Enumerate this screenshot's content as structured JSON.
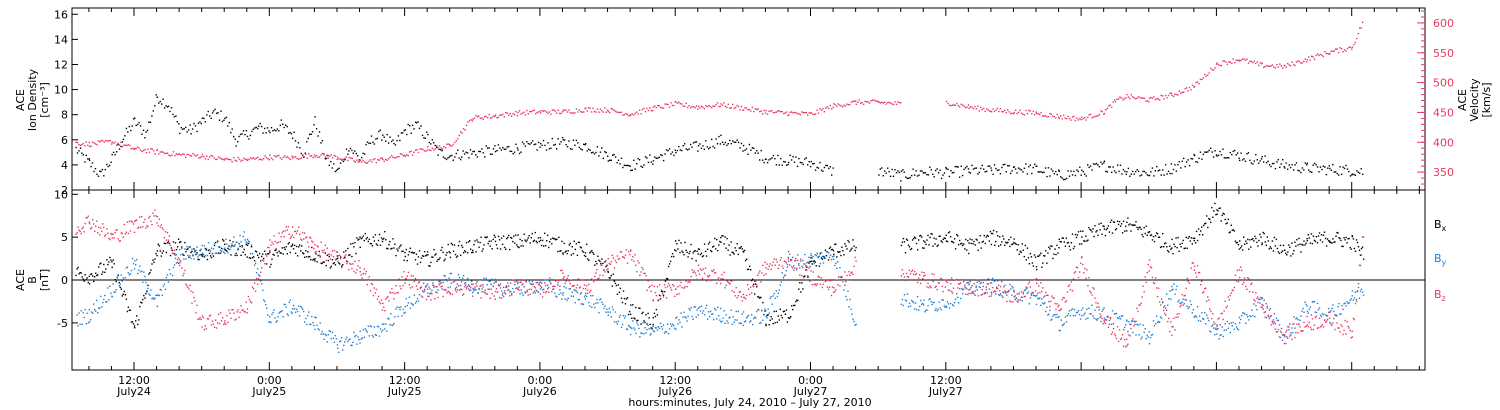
{
  "chart_data": [
    {
      "type": "scatter",
      "panel": "plasma",
      "ylabel_left": [
        "ACE",
        "Ion Density",
        "[cm⁻³]"
      ],
      "ylabel_right": [
        "ACE",
        "Velocity",
        "[km/s]"
      ],
      "ylim_left": [
        2,
        16.5
      ],
      "yticks_left": [
        2,
        4,
        6,
        8,
        10,
        12,
        14,
        16
      ],
      "ylim_right": [
        320,
        625
      ],
      "yticks_right": [
        350,
        400,
        450,
        500,
        550,
        600
      ],
      "x_unit": "hours since 2010-07-24 00:00",
      "series": [
        {
          "axis": "left",
          "color": "#000000",
          "x": [
            6.8,
            8,
            9,
            10,
            11,
            12,
            13,
            14,
            15,
            16,
            17,
            18,
            19,
            20,
            21,
            22,
            23,
            24,
            25,
            26,
            27,
            28,
            29,
            30,
            31,
            32,
            33,
            34,
            35,
            36,
            37,
            38,
            39,
            40,
            41,
            42,
            44,
            46,
            48,
            50,
            52,
            54,
            56,
            58,
            60,
            62,
            64,
            66,
            68,
            70,
            72,
            74,
            76,
            78,
            80,
            82,
            84,
            86,
            88,
            90,
            92,
            94,
            96,
            98,
            100,
            102,
            104,
            106,
            108,
            110,
            112,
            114,
            116,
            118,
            120,
            121
          ],
          "y": [
            5.3,
            4.2,
            3.2,
            4.5,
            6.2,
            7.5,
            6.5,
            9.5,
            8.8,
            7.0,
            6.8,
            7.5,
            8.2,
            7.8,
            6.0,
            6.5,
            7.0,
            6.8,
            7.2,
            6.5,
            5.0,
            7.5,
            4.5,
            3.5,
            5.5,
            4.5,
            6.0,
            6.5,
            5.5,
            6.8,
            7.2,
            6.2,
            5.0,
            4.8,
            4.9,
            5.0,
            5.2,
            5.4,
            5.6,
            5.8,
            5.6,
            4.8,
            4.0,
            4.5,
            5.2,
            5.5,
            6.0,
            5.5,
            4.6,
            4.4,
            4.2,
            3.5,
            null,
            3.6,
            3.2,
            3.5,
            3.4,
            3.6,
            3.6,
            3.8,
            3.7,
            3.2,
            3.5,
            4.0,
            3.6,
            3.4,
            3.8,
            4.6,
            5.2,
            4.8,
            4.4,
            4.0,
            3.8,
            3.7,
            3.6,
            3.5
          ]
        },
        {
          "axis": "right",
          "color": "#e8395f",
          "x": [
            6.8,
            8,
            10,
            12,
            14,
            16,
            18,
            20,
            22,
            24,
            26,
            28,
            30,
            32,
            34,
            36,
            38,
            40,
            42,
            44,
            46,
            48,
            50,
            52,
            54,
            56,
            58,
            60,
            62,
            64,
            66,
            68,
            70,
            72,
            74,
            76,
            78,
            80,
            82,
            84,
            86,
            88,
            90,
            92,
            94,
            96,
            98,
            99,
            100,
            102,
            104,
            106,
            108,
            110,
            112,
            114,
            116,
            118,
            120,
            121
          ],
          "y": [
            400,
            398,
            402,
            390,
            385,
            380,
            378,
            372,
            372,
            376,
            375,
            380,
            376,
            368,
            372,
            380,
            390,
            395,
            442,
            445,
            450,
            452,
            452,
            456,
            455,
            448,
            458,
            465,
            460,
            464,
            458,
            452,
            450,
            448,
            462,
            468,
            468,
            465,
            null,
            468,
            460,
            455,
            452,
            450,
            444,
            440,
            452,
            470,
            478,
            472,
            480,
            495,
            532,
            540,
            530,
            528,
            540,
            552,
            560,
            605
          ]
        }
      ],
      "gaps": [
        [
          75,
          81
        ]
      ]
    },
    {
      "type": "scatter",
      "panel": "magnetic-field",
      "ylabel_left": [
        "ACE",
        "B",
        "[nT]"
      ],
      "ylim": [
        -10.5,
        10.5
      ],
      "yticks": [
        -5,
        0,
        5,
        10
      ],
      "zero_line": true,
      "legend": [
        {
          "label": "B",
          "sub": "x",
          "color": "#000000"
        },
        {
          "label": "B",
          "sub": "y",
          "color": "#1f7fd4"
        },
        {
          "label": "B",
          "sub": "z",
          "color": "#e8395f"
        }
      ],
      "series": [
        {
          "name": "Bx",
          "color": "#000000",
          "x": [
            6.8,
            8,
            10,
            12,
            14,
            16,
            18,
            20,
            22,
            24,
            26,
            28,
            30,
            32,
            34,
            36,
            38,
            40,
            42,
            44,
            46,
            48,
            50,
            52,
            54,
            56,
            58,
            60,
            62,
            64,
            66,
            68,
            70,
            72,
            74,
            76,
            78,
            80,
            82,
            84,
            86,
            88,
            90,
            92,
            94,
            96,
            98,
            100,
            102,
            104,
            106,
            108,
            110,
            112,
            114,
            116,
            118,
            120,
            121
          ],
          "y": [
            1.0,
            0.5,
            2.0,
            -5.5,
            3.5,
            4.0,
            3.0,
            4.0,
            3.5,
            2.5,
            4.0,
            3.0,
            2.0,
            4.5,
            5.0,
            3.0,
            2.5,
            3.5,
            4.0,
            4.5,
            4.5,
            5.0,
            4.0,
            3.5,
            1.0,
            -3.5,
            -5.0,
            4.0,
            3.0,
            4.5,
            3.0,
            -4.5,
            -4.0,
            2.0,
            3.5,
            4.0,
            null,
            4.0,
            4.5,
            5.0,
            4.0,
            5.0,
            4.5,
            2.0,
            4.0,
            5.0,
            6.0,
            6.5,
            5.5,
            4.0,
            5.0,
            8.5,
            4.0,
            5.0,
            3.5,
            4.5,
            5.0,
            4.5,
            3.0
          ]
        },
        {
          "name": "By",
          "color": "#1f7fd4",
          "x": [
            6.8,
            8,
            10,
            12,
            14,
            16,
            18,
            20,
            22,
            24,
            26,
            28,
            30,
            32,
            34,
            36,
            38,
            40,
            42,
            44,
            46,
            48,
            50,
            52,
            54,
            56,
            58,
            60,
            62,
            64,
            66,
            68,
            70,
            72,
            74,
            76,
            78,
            80,
            82,
            84,
            86,
            88,
            90,
            92,
            94,
            96,
            98,
            100,
            102,
            104,
            106,
            108,
            110,
            112,
            114,
            116,
            118,
            120,
            121
          ],
          "y": [
            -4.5,
            -4.0,
            -1.0,
            2.0,
            -2.5,
            3.0,
            3.5,
            4.0,
            5.0,
            -4.5,
            -3.0,
            -5.0,
            -7.5,
            -6.5,
            -5.5,
            -3.0,
            -1.0,
            0.0,
            -0.5,
            -0.7,
            -1.0,
            -0.5,
            -1.5,
            -2.0,
            -3.5,
            -5.5,
            -6.0,
            -5.0,
            -3.5,
            -4.0,
            -4.5,
            -4.0,
            2.0,
            2.5,
            3.0,
            -5.0,
            null,
            -2.0,
            -3.0,
            -2.5,
            -1.0,
            -0.5,
            -1.5,
            -2.0,
            -5.0,
            -3.5,
            -4.0,
            -5.0,
            -6.5,
            -1.0,
            -3.5,
            -6.0,
            -5.0,
            -2.5,
            -6.5,
            -3.0,
            -4.0,
            -2.0,
            -1.0
          ]
        },
        {
          "name": "Bz",
          "color": "#e8395f",
          "x": [
            6.8,
            8,
            10,
            12,
            14,
            16,
            18,
            20,
            22,
            24,
            26,
            28,
            30,
            32,
            34,
            36,
            38,
            40,
            42,
            44,
            46,
            48,
            50,
            52,
            54,
            56,
            58,
            60,
            62,
            64,
            66,
            68,
            70,
            72,
            74,
            76,
            78,
            80,
            82,
            84,
            86,
            88,
            90,
            92,
            94,
            96,
            98,
            100,
            102,
            104,
            106,
            108,
            110,
            112,
            114,
            116,
            118,
            120,
            121
          ],
          "y": [
            6.0,
            7.0,
            5.0,
            6.5,
            7.5,
            2.0,
            -5.0,
            -4.5,
            -3.0,
            4.0,
            6.0,
            4.0,
            2.5,
            1.5,
            -3.0,
            0.5,
            -1.5,
            -0.8,
            -1.0,
            -1.5,
            -0.5,
            -1.2,
            0.5,
            -1.0,
            2.0,
            3.0,
            -1.5,
            -1.0,
            1.0,
            0.5,
            -2.0,
            1.5,
            2.5,
            0.5,
            -1.0,
            2.0,
            null,
            1.0,
            0.2,
            -0.5,
            -0.8,
            -1.0,
            -2.0,
            -0.5,
            -3.5,
            2.0,
            -4.5,
            -7.5,
            1.5,
            -6.0,
            2.0,
            -5.5,
            1.0,
            -3.0,
            -6.5,
            -5.0,
            -4.5,
            -6.0,
            6.0
          ]
        }
      ],
      "gaps": [
        [
          75,
          81
        ]
      ]
    }
  ],
  "x_axis": {
    "xlim": [
      6.5,
      126.5
    ],
    "xlabel": "hours:minutes, July 24, 2010 – July 27, 2010",
    "ticks": [
      {
        "x": 12,
        "label": "12:00",
        "sub": "July24"
      },
      {
        "x": 24,
        "label": "0:00",
        "sub": "July25"
      },
      {
        "x": 36,
        "label": "12:00",
        "sub": "July25"
      },
      {
        "x": 48,
        "label": "0:00",
        "sub": "July26"
      },
      {
        "x": 60,
        "label": "12:00",
        "sub": "July26"
      },
      {
        "x": 72,
        "label": "0:00",
        "sub": "July27"
      },
      {
        "x": 84,
        "label": "12:00",
        "sub": "July27"
      }
    ]
  }
}
